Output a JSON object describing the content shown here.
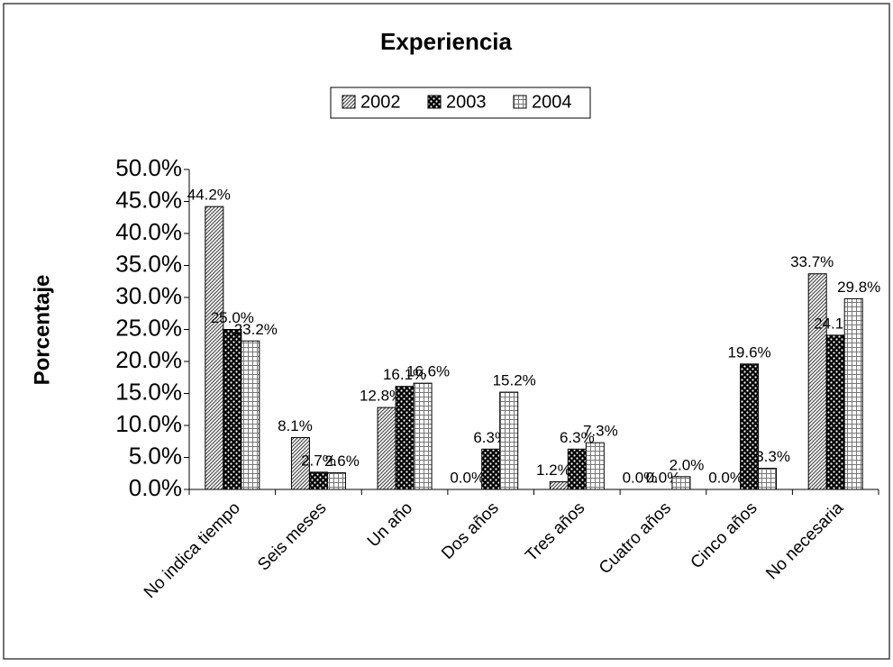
{
  "chart_data": {
    "type": "bar",
    "title": "Experiencia",
    "y_label": "Porcentaje",
    "categories": [
      "No indica tiempo",
      "Seis meses",
      "Un año",
      "Dos años",
      "Tres años",
      "Cuatro años",
      "Cinco años",
      "No necesaria"
    ],
    "series": [
      {
        "name": "2002",
        "color": "#555555",
        "values": [
          44.2,
          8.1,
          12.8,
          0.0,
          1.2,
          0.0,
          0.0,
          33.7
        ],
        "value_labels": [
          "44.2%",
          "8.1%",
          "12.8%",
          "0.0%",
          "1.2%",
          "0.0%",
          "0.0%",
          "33.7%"
        ]
      },
      {
        "name": "2003",
        "color": "#000000",
        "values": [
          25.0,
          2.7,
          16.1,
          6.3,
          6.3,
          0.0,
          19.6,
          24.1
        ],
        "value_labels": [
          "25.0%",
          "2.7%",
          "16.1%",
          "6.3%",
          "6.3%",
          "0.0%",
          "19.6%",
          "24.1%"
        ]
      },
      {
        "name": "2004",
        "color": "#777777",
        "values": [
          23.2,
          2.6,
          16.6,
          15.2,
          7.3,
          2.0,
          3.3,
          29.8
        ],
        "value_labels": [
          "23.2%",
          "2.6%",
          "16.6%",
          "15.2%",
          "7.3%",
          "2.0%",
          "3.3%",
          "29.8%"
        ]
      }
    ],
    "ylim": [
      0,
      50
    ],
    "yticks": [
      {
        "value": 0,
        "label": "0.0%"
      },
      {
        "value": 5,
        "label": "5.0%"
      },
      {
        "value": 10,
        "label": "10.0%"
      },
      {
        "value": 15,
        "label": "15.0%"
      },
      {
        "value": 20,
        "label": "20.0%"
      },
      {
        "value": 25,
        "label": "25.0%"
      },
      {
        "value": 30,
        "label": "30.0%"
      },
      {
        "value": 35,
        "label": "35.0%"
      },
      {
        "value": 40,
        "label": "40.0%"
      },
      {
        "value": 45,
        "label": "45.0%"
      },
      {
        "value": 50,
        "label": "50.0%"
      }
    ],
    "legend": "top",
    "grid": false
  }
}
